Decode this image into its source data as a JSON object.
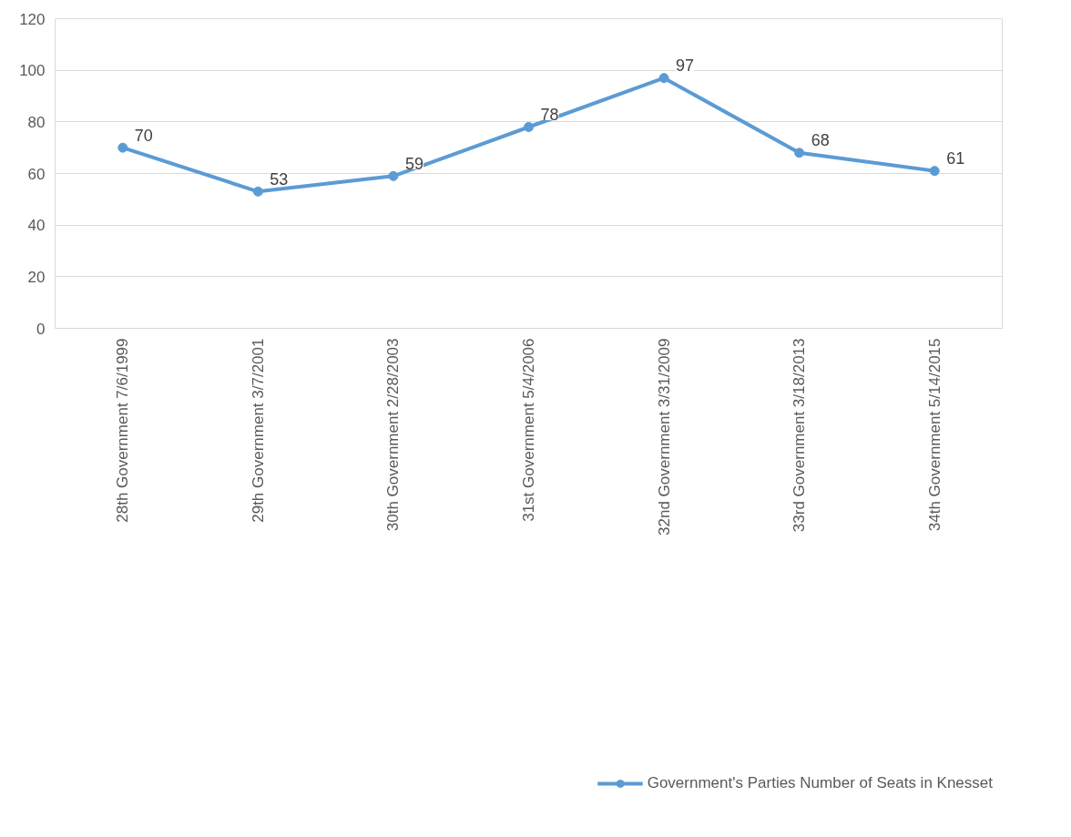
{
  "chart_data": {
    "type": "line",
    "categories": [
      "28th Government 7/6/1999",
      "29th Government 3/7/2001",
      "30th Government 2/28/2003",
      "31st Government 5/4/2006",
      "32nd Government 3/31/2009",
      "33rd Government 3/18/2013",
      "34th Government 5/14/2015"
    ],
    "series": [
      {
        "name": "Government's Parties Number of Seats in Knesset",
        "color": "#5b9bd5",
        "values": [
          70,
          53,
          59,
          78,
          97,
          68,
          61
        ]
      }
    ],
    "ylim": [
      0,
      120
    ],
    "yticks": [
      0,
      20,
      40,
      60,
      80,
      100,
      120
    ],
    "grid": "y",
    "legend": "bottom",
    "marker": "circle",
    "line_style": "solid",
    "data_labels": true
  }
}
